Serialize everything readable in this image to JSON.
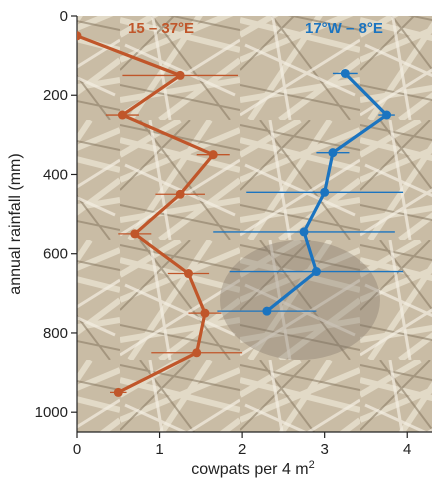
{
  "chart_data": {
    "type": "line",
    "orientation": "vertical-profile",
    "xlabel": "cowpats per 4 m",
    "xlabel_superscript": "2",
    "ylabel": "annual rainfall (mm)",
    "xlim": [
      0,
      4.3
    ],
    "ylim": [
      0,
      1050
    ],
    "y_inverted": true,
    "x_ticks": [
      "0",
      "1",
      "2",
      "3",
      "4"
    ],
    "y_ticks": [
      "0",
      "200",
      "400",
      "600",
      "800",
      "1000"
    ],
    "x_tick_values": [
      0,
      1,
      2,
      3,
      4
    ],
    "y_tick_values": [
      0,
      200,
      400,
      600,
      800,
      1000
    ],
    "background": "photo of dry grass and cowpats",
    "series": [
      {
        "name": "15 – 37°E",
        "color": "#c0562a",
        "points": [
          {
            "x": 0.0,
            "y": 50,
            "err": 0
          },
          {
            "x": 1.25,
            "y": 150,
            "err": 0.7
          },
          {
            "x": 0.55,
            "y": 250,
            "err": 0.2
          },
          {
            "x": 1.65,
            "y": 350,
            "err": 0.2
          },
          {
            "x": 1.25,
            "y": 450,
            "err": 0.3
          },
          {
            "x": 0.7,
            "y": 550,
            "err": 0.2
          },
          {
            "x": 1.35,
            "y": 650,
            "err": 0.25
          },
          {
            "x": 1.55,
            "y": 750,
            "err": 0.2
          },
          {
            "x": 1.45,
            "y": 850,
            "err": 0.55
          },
          {
            "x": 0.5,
            "y": 950,
            "err": 0.1
          }
        ]
      },
      {
        "name": "17°W – 8°E",
        "color": "#1b74c0",
        "points": [
          {
            "x": 3.25,
            "y": 145,
            "err": 0.15
          },
          {
            "x": 3.75,
            "y": 250,
            "err": 0.1
          },
          {
            "x": 3.1,
            "y": 345,
            "err": 0.2
          },
          {
            "x": 3.0,
            "y": 445,
            "err": 0.95
          },
          {
            "x": 2.75,
            "y": 545,
            "err": 1.1
          },
          {
            "x": 2.9,
            "y": 645,
            "err": 1.05
          },
          {
            "x": 2.3,
            "y": 745,
            "err": 0.6
          }
        ]
      }
    ]
  }
}
